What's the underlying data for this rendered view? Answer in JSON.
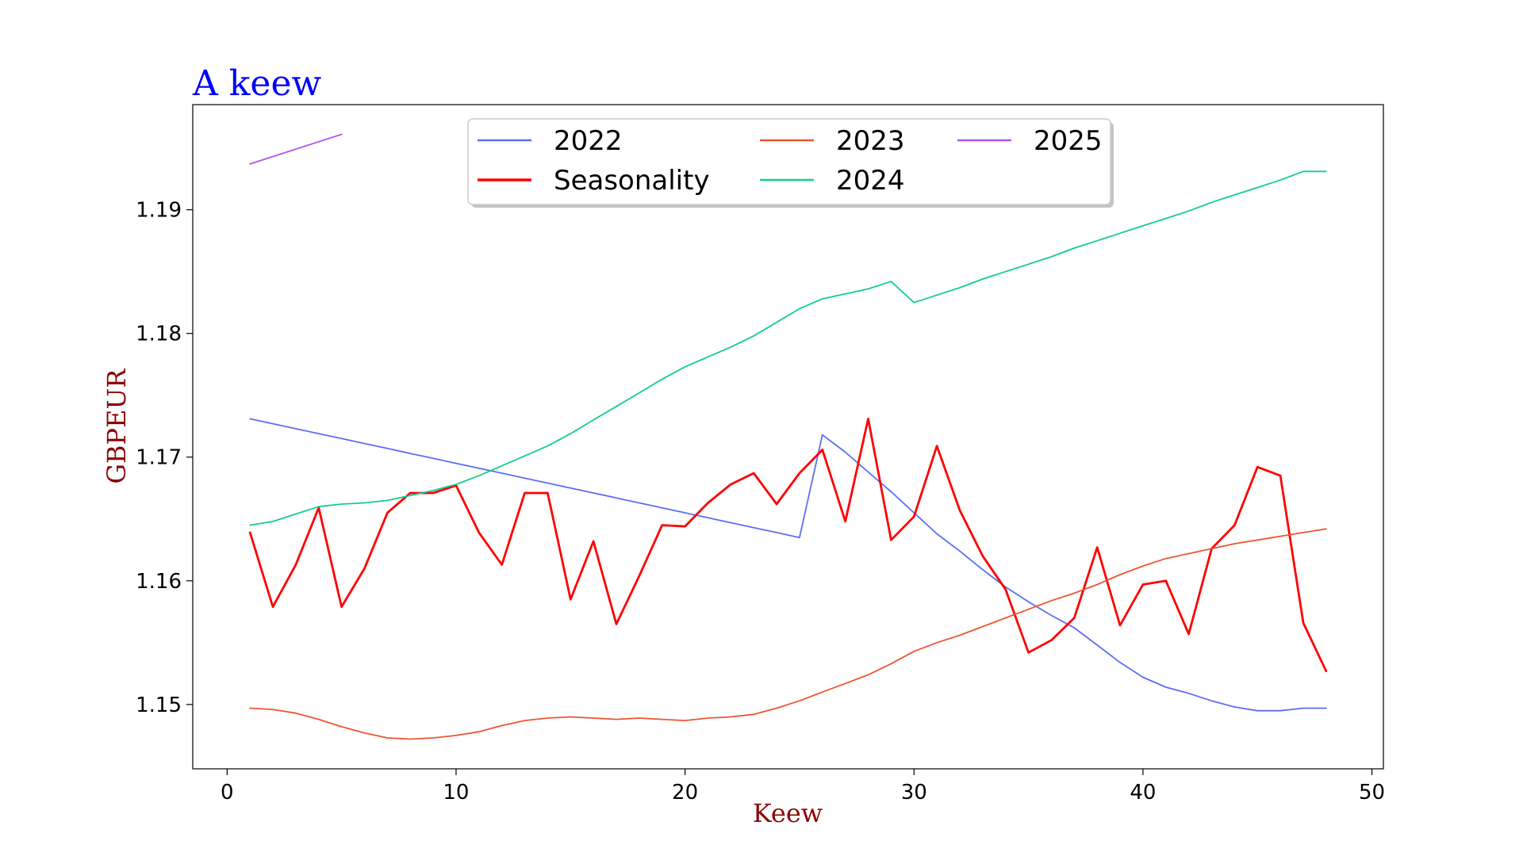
{
  "chart_data": {
    "type": "line",
    "title": "A keew",
    "xlabel": "Keew",
    "ylabel": "GBPEUR",
    "xlim": [
      -1.5,
      50.5
    ],
    "ylim": [
      1.1448,
      1.1985
    ],
    "xticks": [
      0,
      10,
      20,
      30,
      40,
      50
    ],
    "yticks": [
      1.15,
      1.16,
      1.17,
      1.18,
      1.19
    ],
    "ytick_labels": [
      "1.15",
      "1.16",
      "1.17",
      "1.18",
      "1.19"
    ],
    "grid": false,
    "legend_position": "top-center",
    "colors": {
      "title": "#0000ff",
      "axis_label": "#8b0000"
    },
    "series": [
      {
        "name": "2022",
        "color": "#5b6ef5",
        "width": 1.8,
        "x": [
          1,
          2,
          3,
          4,
          5,
          6,
          7,
          8,
          9,
          10,
          11,
          12,
          13,
          14,
          15,
          16,
          17,
          18,
          19,
          20,
          21,
          22,
          23,
          24,
          25,
          26,
          27,
          28,
          29,
          30,
          31,
          32,
          33,
          34,
          35,
          36,
          37,
          38,
          39,
          40,
          41,
          42,
          43,
          44,
          45,
          46,
          47,
          48
        ],
        "y": [
          1.1731,
          1.1727,
          1.1723,
          1.1719,
          1.1715,
          1.1711,
          1.1707,
          1.1703,
          1.1699,
          1.1695,
          1.1691,
          1.1687,
          1.1683,
          1.1679,
          1.1675,
          1.1671,
          1.1667,
          1.1663,
          1.1659,
          1.1655,
          1.1651,
          1.1647,
          1.1643,
          1.1639,
          1.1635,
          1.1718,
          1.1704,
          1.1688,
          1.1672,
          1.1655,
          1.1638,
          1.1624,
          1.1609,
          1.1595,
          1.1583,
          1.1572,
          1.1562,
          1.1548,
          1.1534,
          1.1522,
          1.1514,
          1.1509,
          1.1503,
          1.1498,
          1.1495,
          1.1495,
          1.1497,
          1.1497
        ]
      },
      {
        "name": "Seasonality",
        "color": "#ff0000",
        "width": 2.8,
        "x": [
          1,
          2,
          3,
          4,
          5,
          6,
          7,
          8,
          9,
          10,
          11,
          12,
          13,
          14,
          15,
          16,
          17,
          18,
          19,
          20,
          21,
          22,
          23,
          24,
          25,
          26,
          27,
          28,
          29,
          30,
          31,
          32,
          33,
          34,
          35,
          36,
          37,
          38,
          39,
          40,
          41,
          42,
          43,
          44,
          45,
          46,
          47,
          48
        ],
        "y": [
          1.1639,
          1.1579,
          1.1613,
          1.1659,
          1.1579,
          1.161,
          1.1655,
          1.1671,
          1.1671,
          1.1677,
          1.1639,
          1.1613,
          1.1671,
          1.1671,
          1.1585,
          1.1632,
          1.1565,
          1.1604,
          1.1645,
          1.1644,
          1.1663,
          1.1678,
          1.1687,
          1.1662,
          1.1687,
          1.1706,
          1.1648,
          1.1731,
          1.1633,
          1.1652,
          1.1709,
          1.1657,
          1.162,
          1.1593,
          1.1542,
          1.1552,
          1.157,
          1.1627,
          1.1564,
          1.1597,
          1.16,
          1.1557,
          1.1626,
          1.1645,
          1.1692,
          1.1685,
          1.1566,
          1.1527
        ]
      },
      {
        "name": "2023",
        "color": "#ee5533",
        "width": 1.8,
        "x": [
          1,
          2,
          3,
          4,
          5,
          6,
          7,
          8,
          9,
          10,
          11,
          12,
          13,
          14,
          15,
          16,
          17,
          18,
          19,
          20,
          21,
          22,
          23,
          24,
          25,
          26,
          27,
          28,
          29,
          30,
          31,
          32,
          33,
          34,
          35,
          36,
          37,
          38,
          39,
          40,
          41,
          42,
          43,
          44,
          45,
          46,
          47,
          48
        ],
        "y": [
          1.1497,
          1.1496,
          1.1493,
          1.1488,
          1.1482,
          1.1477,
          1.1473,
          1.1472,
          1.1473,
          1.1475,
          1.1478,
          1.1483,
          1.1487,
          1.1489,
          1.149,
          1.1489,
          1.1488,
          1.1489,
          1.1488,
          1.1487,
          1.1489,
          1.149,
          1.1492,
          1.1497,
          1.1503,
          1.151,
          1.1517,
          1.1524,
          1.1533,
          1.1543,
          1.155,
          1.1556,
          1.1563,
          1.157,
          1.1577,
          1.1584,
          1.159,
          1.1597,
          1.1605,
          1.1612,
          1.1618,
          1.1622,
          1.1626,
          1.163,
          1.1633,
          1.1636,
          1.1639,
          1.1642
        ]
      },
      {
        "name": "2024",
        "color": "#11cc99",
        "width": 1.8,
        "x": [
          1,
          2,
          3,
          4,
          5,
          6,
          7,
          8,
          9,
          10,
          11,
          12,
          13,
          14,
          15,
          16,
          17,
          18,
          19,
          20,
          21,
          22,
          23,
          24,
          25,
          26,
          27,
          28,
          29,
          30,
          31,
          32,
          33,
          34,
          35,
          36,
          37,
          38,
          39,
          40,
          41,
          42,
          43,
          44,
          45,
          46,
          47,
          48
        ],
        "y": [
          1.1645,
          1.1648,
          1.1654,
          1.166,
          1.1662,
          1.1663,
          1.1665,
          1.1669,
          1.1673,
          1.1678,
          1.1685,
          1.1693,
          1.1701,
          1.1709,
          1.1719,
          1.173,
          1.1741,
          1.1752,
          1.1763,
          1.1773,
          1.1781,
          1.1789,
          1.1798,
          1.1809,
          1.182,
          1.1828,
          1.1832,
          1.1836,
          1.1842,
          1.1825,
          1.1831,
          1.1837,
          1.1844,
          1.185,
          1.1856,
          1.1862,
          1.1869,
          1.1875,
          1.1881,
          1.1887,
          1.1893,
          1.1899,
          1.1906,
          1.1912,
          1.1918,
          1.1924,
          1.1931,
          1.1931
        ]
      },
      {
        "name": "2025",
        "color": "#aa55ee",
        "width": 1.8,
        "x": [
          1,
          2,
          3,
          4,
          5
        ],
        "y": [
          1.1937,
          1.1943,
          1.1949,
          1.1955,
          1.1961
        ]
      }
    ]
  }
}
